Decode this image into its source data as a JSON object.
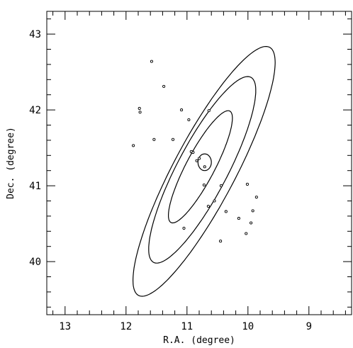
{
  "chart_data": {
    "type": "scatter",
    "title": "",
    "xlabel": "R.A. (degree)",
    "ylabel": "Dec. (degree)",
    "xlim": [
      13.3,
      8.3
    ],
    "ylim": [
      39.3,
      43.3
    ],
    "x_reversed": true,
    "grid": false,
    "x_ticks": [
      13,
      12,
      11,
      10,
      9
    ],
    "y_ticks": [
      40,
      41,
      42,
      43
    ],
    "x_tick_labels": [
      "13",
      "12",
      "11",
      "10",
      "9"
    ],
    "y_tick_labels": [
      "40",
      "41",
      "42",
      "43"
    ],
    "minor_tick_step": 0.2,
    "points": [
      {
        "x": 11.58,
        "y": 42.64
      },
      {
        "x": 11.38,
        "y": 42.31
      },
      {
        "x": 11.78,
        "y": 42.02
      },
      {
        "x": 11.77,
        "y": 41.97
      },
      {
        "x": 11.09,
        "y": 42.0
      },
      {
        "x": 10.97,
        "y": 41.87
      },
      {
        "x": 10.64,
        "y": 41.99
      },
      {
        "x": 11.88,
        "y": 41.53
      },
      {
        "x": 11.54,
        "y": 41.61
      },
      {
        "x": 11.23,
        "y": 41.61
      },
      {
        "x": 10.93,
        "y": 41.45
      },
      {
        "x": 10.9,
        "y": 41.44
      },
      {
        "x": 10.84,
        "y": 41.33
      },
      {
        "x": 10.8,
        "y": 41.36
      },
      {
        "x": 10.71,
        "y": 41.25
      },
      {
        "x": 10.72,
        "y": 41.01
      },
      {
        "x": 10.44,
        "y": 41.0
      },
      {
        "x": 10.55,
        "y": 40.8
      },
      {
        "x": 10.65,
        "y": 40.73
      },
      {
        "x": 10.36,
        "y": 40.66
      },
      {
        "x": 10.01,
        "y": 41.02
      },
      {
        "x": 9.86,
        "y": 40.85
      },
      {
        "x": 9.92,
        "y": 40.67
      },
      {
        "x": 10.15,
        "y": 40.57
      },
      {
        "x": 9.95,
        "y": 40.51
      },
      {
        "x": 10.03,
        "y": 40.37
      },
      {
        "x": 11.05,
        "y": 40.44
      },
      {
        "x": 10.45,
        "y": 40.27
      }
    ],
    "contours": [
      {
        "name": "core",
        "shape": "circle",
        "center": [
          10.71,
          41.31
        ],
        "radius": 0.11
      },
      {
        "name": "inner-ellipse",
        "center": [
          10.78,
          41.25
        ],
        "semi_major": 0.88,
        "semi_minor": 0.22,
        "angle_deg": 56
      },
      {
        "name": "middle-ellipse",
        "center": [
          10.75,
          41.21
        ],
        "semi_major": 1.46,
        "semi_minor": 0.39,
        "angle_deg": 56
      },
      {
        "name": "outer-ellipse",
        "center": [
          10.72,
          41.19
        ],
        "semi_major": 1.96,
        "semi_minor": 0.48,
        "angle_deg": 56,
        "partial": true
      }
    ]
  }
}
